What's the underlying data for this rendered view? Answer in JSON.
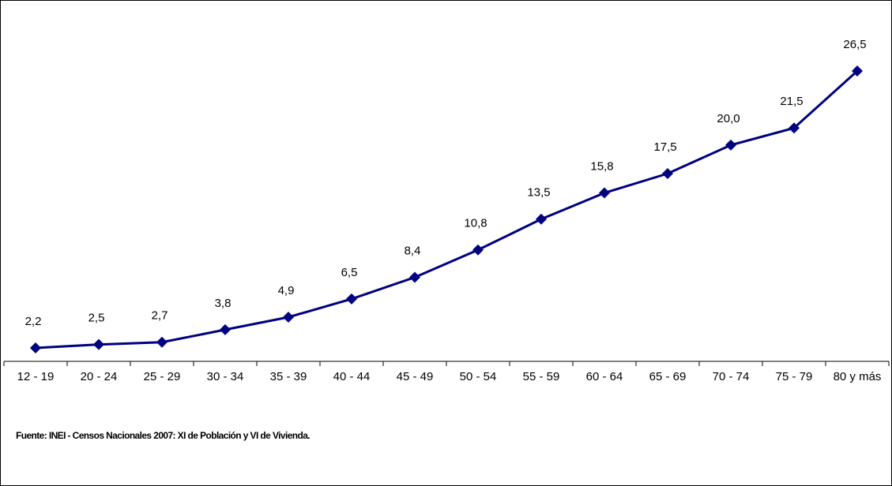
{
  "chart_data": {
    "type": "line",
    "categories": [
      "12 - 19",
      "20 - 24",
      "25 - 29",
      "30 - 34",
      "35 - 39",
      "40 - 44",
      "45 - 49",
      "50 - 54",
      "55 - 59",
      "60 - 64",
      "65 - 69",
      "70 - 74",
      "75 - 79",
      "80 y más"
    ],
    "series": [
      {
        "color": "#000080",
        "values": [
          2.2,
          2.5,
          2.7,
          3.8,
          4.9,
          6.5,
          8.4,
          10.8,
          13.5,
          15.8,
          17.5,
          20.0,
          21.5,
          26.5
        ],
        "value_labels": [
          "2,2",
          "2,5",
          "2,7",
          "3,8",
          "4,9",
          "6,5",
          "8,4",
          "10,8",
          "13,5",
          "15,8",
          "17,5",
          "20,0",
          "21,5",
          "26,5"
        ]
      }
    ],
    "source": "Fuente: INEI - Censos Nacionales 2007: XI de Población y VI de Vivienda."
  }
}
